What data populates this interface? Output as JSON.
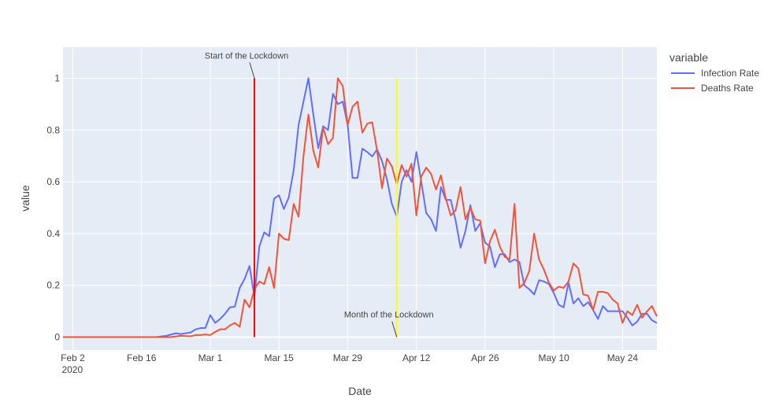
{
  "chart_data": {
    "type": "line",
    "xlabel": "Date",
    "ylabel": "value",
    "x_start": "2020-01-31",
    "x_end": "2020-05-31",
    "ylim": [
      -0.05,
      1.12
    ],
    "grid": true,
    "background": "#e5ecf6",
    "x_ticks": [
      {
        "date": "2020-02-02",
        "label": "Feb 2",
        "sublabel": "2020"
      },
      {
        "date": "2020-02-16",
        "label": "Feb 16"
      },
      {
        "date": "2020-03-01",
        "label": "Mar 1"
      },
      {
        "date": "2020-03-15",
        "label": "Mar 15"
      },
      {
        "date": "2020-03-29",
        "label": "Mar 29"
      },
      {
        "date": "2020-04-12",
        "label": "Apr 12"
      },
      {
        "date": "2020-04-26",
        "label": "Apr 26"
      },
      {
        "date": "2020-05-10",
        "label": "May 10"
      },
      {
        "date": "2020-05-24",
        "label": "May 24"
      }
    ],
    "y_ticks": [
      {
        "value": 0,
        "label": "0"
      },
      {
        "value": 0.2,
        "label": "0.2"
      },
      {
        "value": 0.4,
        "label": "0.4"
      },
      {
        "value": 0.6,
        "label": "0.6"
      },
      {
        "value": 0.8,
        "label": "0.8"
      },
      {
        "value": 1,
        "label": "1"
      }
    ],
    "legend": {
      "title": "variable",
      "position": "right"
    },
    "series": [
      {
        "name": "Infection Rate",
        "color": "#636efa",
        "points": [
          [
            "2020-01-31",
            0
          ],
          [
            "2020-02-05",
            0
          ],
          [
            "2020-02-10",
            0
          ],
          [
            "2020-02-15",
            0
          ],
          [
            "2020-02-19",
            0
          ],
          [
            "2020-02-21",
            0.005
          ],
          [
            "2020-02-23",
            0.015
          ],
          [
            "2020-02-24",
            0.012
          ],
          [
            "2020-02-26",
            0.018
          ],
          [
            "2020-02-27",
            0.03
          ],
          [
            "2020-02-28",
            0.035
          ],
          [
            "2020-02-29",
            0.035
          ],
          [
            "2020-03-01",
            0.085
          ],
          [
            "2020-03-02",
            0.055
          ],
          [
            "2020-03-03",
            0.07
          ],
          [
            "2020-03-04",
            0.09
          ],
          [
            "2020-03-05",
            0.115
          ],
          [
            "2020-03-06",
            0.118
          ],
          [
            "2020-03-07",
            0.19
          ],
          [
            "2020-03-08",
            0.225
          ],
          [
            "2020-03-09",
            0.275
          ],
          [
            "2020-03-10",
            0.155
          ],
          [
            "2020-03-11",
            0.35
          ],
          [
            "2020-03-12",
            0.405
          ],
          [
            "2020-03-13",
            0.39
          ],
          [
            "2020-03-14",
            0.535
          ],
          [
            "2020-03-15",
            0.548
          ],
          [
            "2020-03-16",
            0.495
          ],
          [
            "2020-03-17",
            0.54
          ],
          [
            "2020-03-18",
            0.645
          ],
          [
            "2020-03-19",
            0.82
          ],
          [
            "2020-03-20",
            0.91
          ],
          [
            "2020-03-21",
            1.0
          ],
          [
            "2020-03-22",
            0.86
          ],
          [
            "2020-03-23",
            0.73
          ],
          [
            "2020-03-24",
            0.815
          ],
          [
            "2020-03-25",
            0.8
          ],
          [
            "2020-03-26",
            0.94
          ],
          [
            "2020-03-27",
            0.9
          ],
          [
            "2020-03-28",
            0.91
          ],
          [
            "2020-03-29",
            0.82
          ],
          [
            "2020-03-30",
            0.615
          ],
          [
            "2020-03-31",
            0.615
          ],
          [
            "2020-04-01",
            0.728
          ],
          [
            "2020-04-02",
            0.715
          ],
          [
            "2020-04-03",
            0.698
          ],
          [
            "2020-04-04",
            0.725
          ],
          [
            "2020-04-05",
            0.68
          ],
          [
            "2020-04-06",
            0.61
          ],
          [
            "2020-04-07",
            0.515
          ],
          [
            "2020-04-08",
            0.465
          ],
          [
            "2020-04-09",
            0.6
          ],
          [
            "2020-04-10",
            0.645
          ],
          [
            "2020-04-11",
            0.6
          ],
          [
            "2020-04-12",
            0.715
          ],
          [
            "2020-04-13",
            0.6
          ],
          [
            "2020-04-14",
            0.48
          ],
          [
            "2020-04-15",
            0.455
          ],
          [
            "2020-04-16",
            0.41
          ],
          [
            "2020-04-17",
            0.58
          ],
          [
            "2020-04-18",
            0.53
          ],
          [
            "2020-04-19",
            0.53
          ],
          [
            "2020-04-20",
            0.45
          ],
          [
            "2020-04-21",
            0.345
          ],
          [
            "2020-04-22",
            0.41
          ],
          [
            "2020-04-23",
            0.51
          ],
          [
            "2020-04-24",
            0.41
          ],
          [
            "2020-04-25",
            0.44
          ],
          [
            "2020-04-26",
            0.365
          ],
          [
            "2020-04-27",
            0.35
          ],
          [
            "2020-04-28",
            0.27
          ],
          [
            "2020-04-29",
            0.32
          ],
          [
            "2020-04-30",
            0.32
          ],
          [
            "2020-05-01",
            0.29
          ],
          [
            "2020-05-02",
            0.3
          ],
          [
            "2020-05-03",
            0.29
          ],
          [
            "2020-05-04",
            0.2
          ],
          [
            "2020-05-05",
            0.185
          ],
          [
            "2020-05-06",
            0.165
          ],
          [
            "2020-05-07",
            0.22
          ],
          [
            "2020-05-08",
            0.215
          ],
          [
            "2020-05-09",
            0.205
          ],
          [
            "2020-05-10",
            0.17
          ],
          [
            "2020-05-11",
            0.125
          ],
          [
            "2020-05-12",
            0.115
          ],
          [
            "2020-05-13",
            0.21
          ],
          [
            "2020-05-14",
            0.13
          ],
          [
            "2020-05-15",
            0.15
          ],
          [
            "2020-05-16",
            0.12
          ],
          [
            "2020-05-17",
            0.135
          ],
          [
            "2020-05-18",
            0.105
          ],
          [
            "2020-05-19",
            0.07
          ],
          [
            "2020-05-20",
            0.12
          ],
          [
            "2020-05-21",
            0.1
          ],
          [
            "2020-05-22",
            0.1
          ],
          [
            "2020-05-23",
            0.1
          ],
          [
            "2020-05-24",
            0.1
          ],
          [
            "2020-05-25",
            0.075
          ],
          [
            "2020-05-26",
            0.045
          ],
          [
            "2020-05-27",
            0.06
          ],
          [
            "2020-05-28",
            0.09
          ],
          [
            "2020-05-29",
            0.09
          ],
          [
            "2020-05-30",
            0.065
          ],
          [
            "2020-05-31",
            0.055
          ]
        ]
      },
      {
        "name": "Deaths Rate",
        "color": "#ef553b",
        "points": [
          [
            "2020-01-31",
            0
          ],
          [
            "2020-02-05",
            0
          ],
          [
            "2020-02-10",
            0
          ],
          [
            "2020-02-15",
            0
          ],
          [
            "2020-02-20",
            0
          ],
          [
            "2020-02-22",
            0
          ],
          [
            "2020-02-24",
            0.005
          ],
          [
            "2020-02-26",
            0.003
          ],
          [
            "2020-02-27",
            0.008
          ],
          [
            "2020-02-28",
            0.008
          ],
          [
            "2020-02-29",
            0.01
          ],
          [
            "2020-03-01",
            0.008
          ],
          [
            "2020-03-02",
            0.02
          ],
          [
            "2020-03-03",
            0.03
          ],
          [
            "2020-03-04",
            0.03
          ],
          [
            "2020-03-05",
            0.045
          ],
          [
            "2020-03-06",
            0.055
          ],
          [
            "2020-03-07",
            0.04
          ],
          [
            "2020-03-08",
            0.145
          ],
          [
            "2020-03-09",
            0.115
          ],
          [
            "2020-03-10",
            0.185
          ],
          [
            "2020-03-11",
            0.215
          ],
          [
            "2020-03-12",
            0.205
          ],
          [
            "2020-03-13",
            0.27
          ],
          [
            "2020-03-14",
            0.19
          ],
          [
            "2020-03-15",
            0.4
          ],
          [
            "2020-03-16",
            0.38
          ],
          [
            "2020-03-17",
            0.375
          ],
          [
            "2020-03-18",
            0.515
          ],
          [
            "2020-03-19",
            0.465
          ],
          [
            "2020-03-20",
            0.7
          ],
          [
            "2020-03-21",
            0.86
          ],
          [
            "2020-03-22",
            0.72
          ],
          [
            "2020-03-23",
            0.655
          ],
          [
            "2020-03-24",
            0.81
          ],
          [
            "2020-03-25",
            0.745
          ],
          [
            "2020-03-26",
            0.77
          ],
          [
            "2020-03-27",
            1.0
          ],
          [
            "2020-03-28",
            0.97
          ],
          [
            "2020-03-29",
            0.82
          ],
          [
            "2020-03-30",
            0.89
          ],
          [
            "2020-03-31",
            0.91
          ],
          [
            "2020-04-01",
            0.79
          ],
          [
            "2020-04-02",
            0.825
          ],
          [
            "2020-04-03",
            0.83
          ],
          [
            "2020-04-04",
            0.72
          ],
          [
            "2020-04-05",
            0.575
          ],
          [
            "2020-04-06",
            0.69
          ],
          [
            "2020-04-07",
            0.66
          ],
          [
            "2020-04-08",
            0.59
          ],
          [
            "2020-04-09",
            0.665
          ],
          [
            "2020-04-10",
            0.62
          ],
          [
            "2020-04-11",
            0.67
          ],
          [
            "2020-04-12",
            0.47
          ],
          [
            "2020-04-13",
            0.62
          ],
          [
            "2020-04-14",
            0.655
          ],
          [
            "2020-04-15",
            0.63
          ],
          [
            "2020-04-16",
            0.57
          ],
          [
            "2020-04-17",
            0.625
          ],
          [
            "2020-04-18",
            0.535
          ],
          [
            "2020-04-19",
            0.47
          ],
          [
            "2020-04-20",
            0.49
          ],
          [
            "2020-04-21",
            0.58
          ],
          [
            "2020-04-22",
            0.455
          ],
          [
            "2020-04-23",
            0.5
          ],
          [
            "2020-04-24",
            0.455
          ],
          [
            "2020-04-25",
            0.45
          ],
          [
            "2020-04-26",
            0.285
          ],
          [
            "2020-04-27",
            0.37
          ],
          [
            "2020-04-28",
            0.415
          ],
          [
            "2020-04-29",
            0.35
          ],
          [
            "2020-04-30",
            0.31
          ],
          [
            "2020-05-01",
            0.3
          ],
          [
            "2020-05-02",
            0.515
          ],
          [
            "2020-05-03",
            0.19
          ],
          [
            "2020-05-04",
            0.21
          ],
          [
            "2020-05-05",
            0.255
          ],
          [
            "2020-05-06",
            0.4
          ],
          [
            "2020-05-07",
            0.3
          ],
          [
            "2020-05-08",
            0.26
          ],
          [
            "2020-05-09",
            0.21
          ],
          [
            "2020-05-10",
            0.18
          ],
          [
            "2020-05-11",
            0.195
          ],
          [
            "2020-05-12",
            0.19
          ],
          [
            "2020-05-13",
            0.215
          ],
          [
            "2020-05-14",
            0.285
          ],
          [
            "2020-05-15",
            0.265
          ],
          [
            "2020-05-16",
            0.165
          ],
          [
            "2020-05-17",
            0.16
          ],
          [
            "2020-05-18",
            0.105
          ],
          [
            "2020-05-19",
            0.175
          ],
          [
            "2020-05-20",
            0.175
          ],
          [
            "2020-05-21",
            0.17
          ],
          [
            "2020-05-22",
            0.145
          ],
          [
            "2020-05-23",
            0.13
          ],
          [
            "2020-05-24",
            0.055
          ],
          [
            "2020-05-25",
            0.1
          ],
          [
            "2020-05-26",
            0.085
          ],
          [
            "2020-05-27",
            0.125
          ],
          [
            "2020-05-28",
            0.075
          ],
          [
            "2020-05-29",
            0.1
          ],
          [
            "2020-05-30",
            0.12
          ],
          [
            "2020-05-31",
            0.08
          ]
        ]
      }
    ],
    "vertical_lines": [
      {
        "date": "2020-03-10",
        "y0": 0,
        "y1": 1,
        "color": "#ff0000"
      },
      {
        "date": "2020-04-08",
        "y0": 0,
        "y1": 1,
        "color": "#ffff00"
      }
    ],
    "annotations": [
      {
        "text": "Start of the Lockdown",
        "x": "2020-03-10",
        "y": 1,
        "placement": "above"
      },
      {
        "text": "Month of the Lockdown",
        "x": "2020-04-08",
        "y": 0,
        "placement": "above"
      }
    ]
  }
}
